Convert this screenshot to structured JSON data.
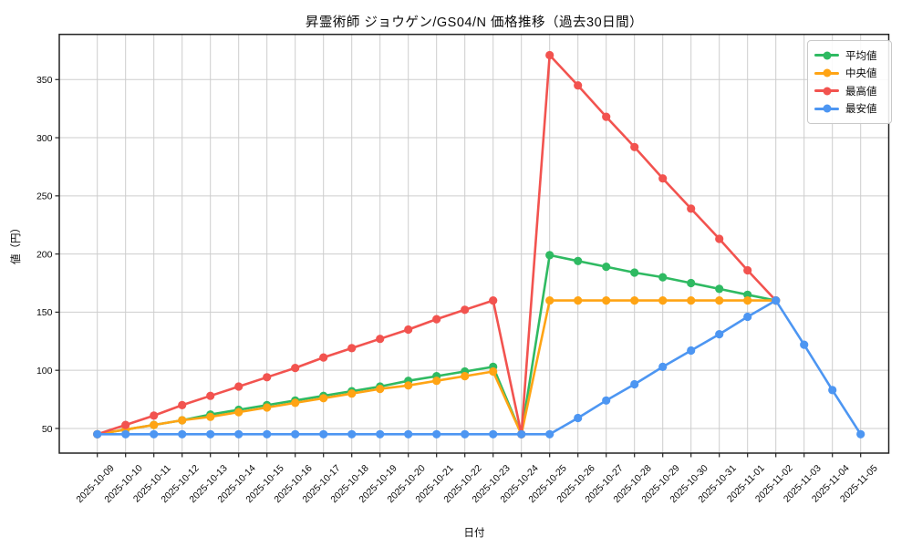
{
  "chart_data": {
    "type": "line",
    "title": "昇霊術師 ジョウゲン/GS04/N 価格推移（過去30日間）",
    "xlabel": "日付",
    "ylabel": "値（円）",
    "grid": true,
    "legend_position": "upper right",
    "ylim": [
      28.8,
      387.3
    ],
    "yticks": [
      50,
      100,
      150,
      200,
      250,
      300,
      350
    ],
    "x": [
      "2025-10-09",
      "2025-10-10",
      "2025-10-11",
      "2025-10-12",
      "2025-10-13",
      "2025-10-14",
      "2025-10-15",
      "2025-10-16",
      "2025-10-17",
      "2025-10-18",
      "2025-10-19",
      "2025-10-20",
      "2025-10-21",
      "2025-10-22",
      "2025-10-23",
      "2025-10-24",
      "2025-10-25",
      "2025-10-26",
      "2025-10-27",
      "2025-10-28",
      "2025-10-29",
      "2025-10-30",
      "2025-10-31",
      "2025-11-01",
      "2025-11-02",
      "2025-11-03",
      "2025-11-04",
      "2025-11-05"
    ],
    "series": [
      {
        "key": "avg",
        "name": "平均値",
        "color": "#2fba62",
        "values": [
          45,
          49,
          53,
          57,
          62,
          66,
          70,
          74,
          78,
          82,
          86,
          91,
          95,
          99,
          103,
          45,
          199,
          194,
          189,
          184,
          180,
          175,
          170,
          165,
          160,
          null,
          null,
          null
        ]
      },
      {
        "key": "median",
        "name": "中央値",
        "color": "#ffa414",
        "values": [
          45,
          49,
          53,
          57,
          60,
          64,
          68,
          72,
          76,
          80,
          84,
          87,
          91,
          95,
          99,
          45,
          160,
          160,
          160,
          160,
          160,
          160,
          160,
          160,
          160,
          null,
          null,
          null
        ]
      },
      {
        "key": "max",
        "name": "最高値",
        "color": "#f2534f",
        "values": [
          45,
          53,
          61,
          70,
          78,
          86,
          94,
          102,
          111,
          119,
          127,
          135,
          144,
          152,
          160,
          45,
          371,
          345,
          318,
          292,
          265,
          239,
          213,
          186,
          160,
          null,
          null,
          null
        ]
      },
      {
        "key": "min",
        "name": "最安値",
        "color": "#4d96f2",
        "values": [
          45,
          45,
          45,
          45,
          45,
          45,
          45,
          45,
          45,
          45,
          45,
          45,
          45,
          45,
          45,
          45,
          45,
          59,
          74,
          88,
          103,
          117,
          131,
          146,
          160,
          122,
          83,
          45
        ]
      }
    ]
  }
}
